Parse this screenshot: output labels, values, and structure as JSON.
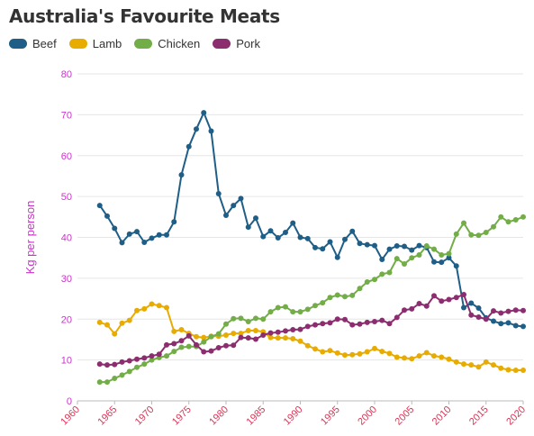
{
  "chart_data": {
    "type": "line",
    "title": "Australia's Favourite Meats",
    "ylabel": "Kg per person",
    "xlabel": "",
    "xlim": [
      1960,
      2020
    ],
    "ylim": [
      0,
      80
    ],
    "xticks": [
      1960,
      1965,
      1970,
      1975,
      1980,
      1985,
      1990,
      1995,
      2000,
      2005,
      2010,
      2015,
      2020
    ],
    "yticks": [
      0,
      10,
      20,
      30,
      40,
      50,
      60,
      70,
      80
    ],
    "legend_position": "top-left",
    "grid": "horizontal",
    "x": [
      1963,
      1964,
      1965,
      1966,
      1967,
      1968,
      1969,
      1970,
      1971,
      1972,
      1973,
      1974,
      1975,
      1976,
      1977,
      1978,
      1979,
      1980,
      1981,
      1982,
      1983,
      1984,
      1985,
      1986,
      1987,
      1988,
      1989,
      1990,
      1991,
      1992,
      1993,
      1994,
      1995,
      1996,
      1997,
      1998,
      1999,
      2000,
      2001,
      2002,
      2003,
      2004,
      2005,
      2006,
      2007,
      2008,
      2009,
      2010,
      2011,
      2012,
      2013,
      2014,
      2015,
      2016,
      2017,
      2018,
      2019,
      2020
    ],
    "series": [
      {
        "name": "Beef",
        "color": "#1f5f87",
        "values": [
          47.8,
          45.2,
          42.2,
          38.7,
          40.8,
          41.4,
          38.8,
          39.8,
          40.6,
          40.6,
          43.8,
          55.3,
          62.2,
          66.5,
          70.5,
          66.0,
          50.7,
          45.4,
          47.8,
          49.5,
          42.5,
          44.7,
          40.2,
          41.6,
          39.9,
          41.2,
          43.5,
          40.0,
          39.7,
          37.5,
          37.2,
          38.9,
          35.1,
          39.5,
          41.5,
          38.5,
          38.2,
          38.0,
          34.6,
          37.1,
          37.9,
          37.8,
          36.9,
          38.0,
          37.5,
          34.0,
          33.9,
          35.0,
          33.0,
          22.8,
          23.9,
          22.7,
          20.3,
          19.5,
          18.9,
          19.1,
          18.4,
          18.2
        ]
      },
      {
        "name": "Lamb",
        "color": "#e8ac00",
        "values": [
          19.2,
          18.6,
          16.4,
          19.0,
          19.7,
          22.1,
          22.5,
          23.7,
          23.3,
          22.8,
          17.0,
          17.4,
          16.5,
          15.7,
          15.5,
          15.8,
          15.8,
          16.1,
          16.5,
          16.5,
          17.2,
          17.2,
          16.9,
          15.5,
          15.4,
          15.4,
          15.2,
          14.6,
          13.5,
          12.7,
          12.0,
          12.3,
          11.7,
          11.2,
          11.3,
          11.5,
          12.0,
          12.8,
          12.1,
          11.6,
          10.7,
          10.5,
          10.3,
          11.0,
          11.8,
          11.0,
          10.7,
          10.2,
          9.5,
          9.0,
          8.8,
          8.3,
          9.5,
          8.8,
          8.0,
          7.6,
          7.5,
          7.5
        ]
      },
      {
        "name": "Chicken",
        "color": "#72ad47",
        "values": [
          4.6,
          4.6,
          5.5,
          6.3,
          7.2,
          8.2,
          9.0,
          10.0,
          10.6,
          11.0,
          12.1,
          13.1,
          13.3,
          13.3,
          14.4,
          15.7,
          16.4,
          18.8,
          20.1,
          20.2,
          19.4,
          20.2,
          20.0,
          21.8,
          22.8,
          23.0,
          21.8,
          21.8,
          22.4,
          23.3,
          24.0,
          25.3,
          25.9,
          25.5,
          25.8,
          27.5,
          29.1,
          29.7,
          31.0,
          31.4,
          34.8,
          33.5,
          35.0,
          35.7,
          37.9,
          37.1,
          35.7,
          36.0,
          40.8,
          43.5,
          40.6,
          40.5,
          41.2,
          42.6,
          45.0,
          43.8,
          44.3,
          45.0
        ]
      },
      {
        "name": "Pork",
        "color": "#8b2d6f",
        "values": [
          9.0,
          8.8,
          8.9,
          9.5,
          9.8,
          10.2,
          10.5,
          11.0,
          11.4,
          13.7,
          14.0,
          14.7,
          15.9,
          13.7,
          12.0,
          12.2,
          13.0,
          13.5,
          13.6,
          15.5,
          15.4,
          15.1,
          16.1,
          16.6,
          16.8,
          17.1,
          17.4,
          17.5,
          18.2,
          18.6,
          18.9,
          19.1,
          20.0,
          19.9,
          18.6,
          18.8,
          19.2,
          19.4,
          19.7,
          18.9,
          20.4,
          22.2,
          22.5,
          23.8,
          23.2,
          25.7,
          24.4,
          24.8,
          25.3,
          26.0,
          21.0,
          20.5,
          20.0,
          22.0,
          21.5,
          21.9,
          22.2,
          22.1
        ]
      }
    ]
  }
}
